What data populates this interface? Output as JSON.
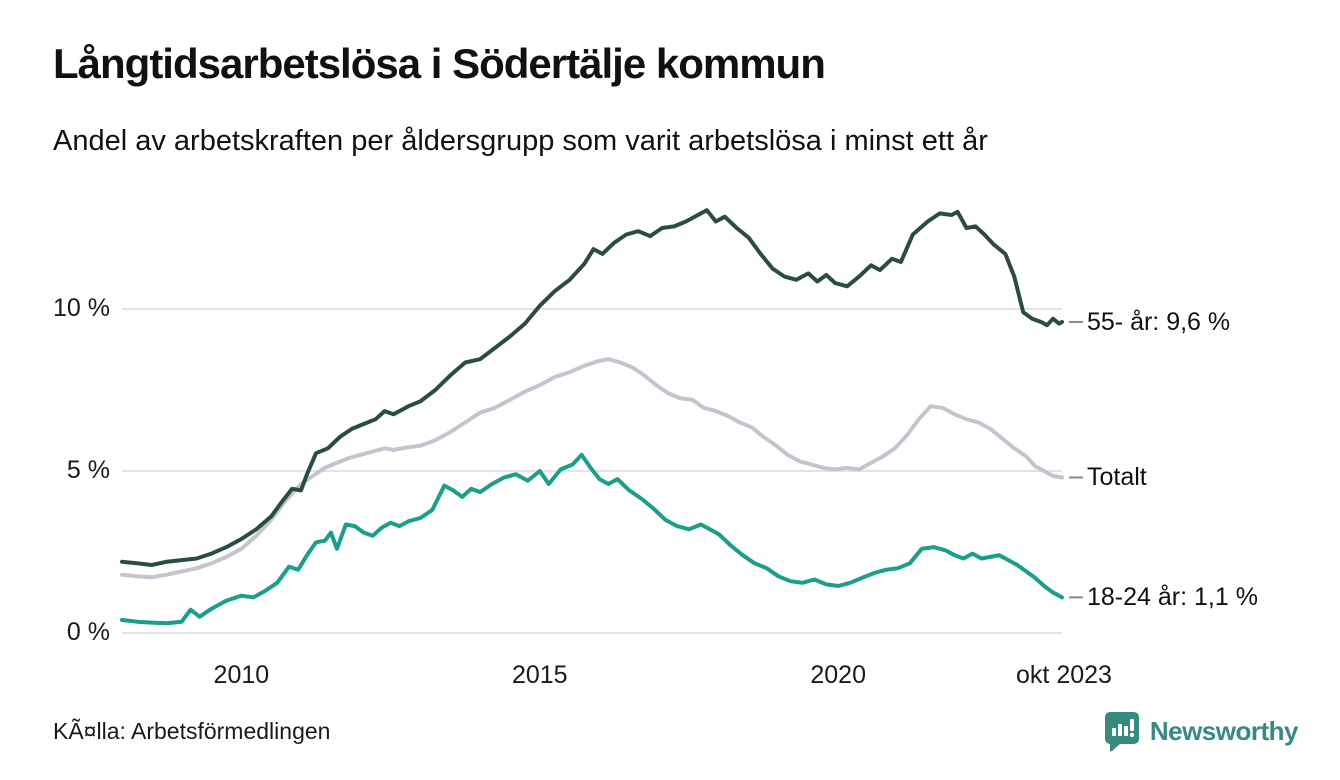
{
  "header": {
    "title": "Långtidsarbetslösa i Södertälje kommun",
    "subtitle": "Andel av arbetskraften per åldersgrupp som varit arbetslösa i minst ett år"
  },
  "chart_data": {
    "type": "line",
    "title": "Långtidsarbetslösa i Södertälje kommun",
    "subtitle": "Andel av arbetskraften per åldersgrupp som varit arbetslösa i minst ett år",
    "unit": "% av arbetskraften",
    "grid": true,
    "x_range": [
      2008.0,
      2023.79
    ],
    "y_range": [
      0,
      13.5
    ],
    "x_axis": {
      "ticks": [
        {
          "t": 2010,
          "label": "2010"
        },
        {
          "t": 2015,
          "label": "2015"
        },
        {
          "t": 2020,
          "label": "2020"
        },
        {
          "t": 2023.79,
          "label": "okt 2023"
        }
      ]
    },
    "y_axis": {
      "ticks": [
        {
          "v": 0,
          "label": "0 %"
        },
        {
          "v": 5,
          "label": "5 %"
        },
        {
          "v": 10,
          "label": "10 %"
        }
      ]
    },
    "gridline_color": "#e4e2e7",
    "series": [
      {
        "name": "Totalt",
        "color": "#c6c3cf",
        "end_label": "Totalt",
        "end_value": "4,8 %",
        "points": [
          [
            2008.0,
            1.8
          ],
          [
            2008.25,
            1.75
          ],
          [
            2008.5,
            1.72
          ],
          [
            2008.75,
            1.8
          ],
          [
            2009.0,
            1.9
          ],
          [
            2009.25,
            2.0
          ],
          [
            2009.5,
            2.15
          ],
          [
            2009.75,
            2.35
          ],
          [
            2010.0,
            2.6
          ],
          [
            2010.25,
            3.0
          ],
          [
            2010.5,
            3.5
          ],
          [
            2010.75,
            4.1
          ],
          [
            2011.0,
            4.6
          ],
          [
            2011.2,
            4.85
          ],
          [
            2011.4,
            5.1
          ],
          [
            2011.6,
            5.25
          ],
          [
            2011.8,
            5.4
          ],
          [
            2012.0,
            5.5
          ],
          [
            2012.2,
            5.6
          ],
          [
            2012.4,
            5.7
          ],
          [
            2012.55,
            5.65
          ],
          [
            2012.75,
            5.72
          ],
          [
            2013.0,
            5.78
          ],
          [
            2013.25,
            5.95
          ],
          [
            2013.5,
            6.2
          ],
          [
            2013.75,
            6.5
          ],
          [
            2014.0,
            6.8
          ],
          [
            2014.25,
            6.95
          ],
          [
            2014.5,
            7.2
          ],
          [
            2014.75,
            7.45
          ],
          [
            2015.0,
            7.65
          ],
          [
            2015.25,
            7.9
          ],
          [
            2015.5,
            8.05
          ],
          [
            2015.75,
            8.25
          ],
          [
            2016.0,
            8.4
          ],
          [
            2016.15,
            8.45
          ],
          [
            2016.35,
            8.35
          ],
          [
            2016.55,
            8.2
          ],
          [
            2016.75,
            7.95
          ],
          [
            2016.95,
            7.65
          ],
          [
            2017.15,
            7.4
          ],
          [
            2017.35,
            7.25
          ],
          [
            2017.55,
            7.2
          ],
          [
            2017.75,
            6.95
          ],
          [
            2017.95,
            6.85
          ],
          [
            2018.15,
            6.7
          ],
          [
            2018.35,
            6.5
          ],
          [
            2018.55,
            6.35
          ],
          [
            2018.75,
            6.05
          ],
          [
            2018.95,
            5.8
          ],
          [
            2019.15,
            5.5
          ],
          [
            2019.35,
            5.3
          ],
          [
            2019.55,
            5.2
          ],
          [
            2019.75,
            5.1
          ],
          [
            2019.95,
            5.05
          ],
          [
            2020.15,
            5.1
          ],
          [
            2020.35,
            5.05
          ],
          [
            2020.55,
            5.25
          ],
          [
            2020.75,
            5.45
          ],
          [
            2020.95,
            5.7
          ],
          [
            2021.15,
            6.1
          ],
          [
            2021.35,
            6.6
          ],
          [
            2021.55,
            7.0
          ],
          [
            2021.75,
            6.95
          ],
          [
            2021.95,
            6.75
          ],
          [
            2022.15,
            6.6
          ],
          [
            2022.35,
            6.5
          ],
          [
            2022.55,
            6.3
          ],
          [
            2022.75,
            6.0
          ],
          [
            2022.95,
            5.7
          ],
          [
            2023.15,
            5.45
          ],
          [
            2023.3,
            5.15
          ],
          [
            2023.45,
            5.0
          ],
          [
            2023.6,
            4.85
          ],
          [
            2023.75,
            4.8
          ]
        ]
      },
      {
        "name": "18-24 år",
        "color": "#1b9e8a",
        "end_label": "18-24 år: 1,1 %",
        "end_value": "1,1 %",
        "points": [
          [
            2008.0,
            0.4
          ],
          [
            2008.25,
            0.35
          ],
          [
            2008.5,
            0.32
          ],
          [
            2008.75,
            0.3
          ],
          [
            2009.0,
            0.35
          ],
          [
            2009.15,
            0.72
          ],
          [
            2009.3,
            0.5
          ],
          [
            2009.5,
            0.75
          ],
          [
            2009.75,
            1.0
          ],
          [
            2010.0,
            1.15
          ],
          [
            2010.2,
            1.1
          ],
          [
            2010.4,
            1.3
          ],
          [
            2010.6,
            1.55
          ],
          [
            2010.8,
            2.05
          ],
          [
            2010.95,
            1.95
          ],
          [
            2011.1,
            2.4
          ],
          [
            2011.25,
            2.8
          ],
          [
            2011.4,
            2.85
          ],
          [
            2011.5,
            3.1
          ],
          [
            2011.6,
            2.6
          ],
          [
            2011.75,
            3.35
          ],
          [
            2011.9,
            3.3
          ],
          [
            2012.05,
            3.1
          ],
          [
            2012.2,
            3.0
          ],
          [
            2012.35,
            3.25
          ],
          [
            2012.5,
            3.4
          ],
          [
            2012.65,
            3.3
          ],
          [
            2012.8,
            3.45
          ],
          [
            2013.0,
            3.55
          ],
          [
            2013.2,
            3.8
          ],
          [
            2013.4,
            4.55
          ],
          [
            2013.55,
            4.4
          ],
          [
            2013.7,
            4.2
          ],
          [
            2013.85,
            4.45
          ],
          [
            2014.0,
            4.35
          ],
          [
            2014.2,
            4.6
          ],
          [
            2014.4,
            4.8
          ],
          [
            2014.6,
            4.9
          ],
          [
            2014.8,
            4.7
          ],
          [
            2015.0,
            5.0
          ],
          [
            2015.15,
            4.6
          ],
          [
            2015.35,
            5.05
          ],
          [
            2015.55,
            5.2
          ],
          [
            2015.7,
            5.5
          ],
          [
            2015.85,
            5.1
          ],
          [
            2016.0,
            4.75
          ],
          [
            2016.15,
            4.6
          ],
          [
            2016.3,
            4.75
          ],
          [
            2016.5,
            4.4
          ],
          [
            2016.7,
            4.15
          ],
          [
            2016.9,
            3.85
          ],
          [
            2017.1,
            3.5
          ],
          [
            2017.3,
            3.3
          ],
          [
            2017.5,
            3.2
          ],
          [
            2017.7,
            3.35
          ],
          [
            2017.85,
            3.2
          ],
          [
            2018.0,
            3.05
          ],
          [
            2018.2,
            2.7
          ],
          [
            2018.4,
            2.4
          ],
          [
            2018.6,
            2.15
          ],
          [
            2018.8,
            2.0
          ],
          [
            2019.0,
            1.75
          ],
          [
            2019.2,
            1.6
          ],
          [
            2019.4,
            1.55
          ],
          [
            2019.6,
            1.65
          ],
          [
            2019.8,
            1.5
          ],
          [
            2020.0,
            1.45
          ],
          [
            2020.2,
            1.55
          ],
          [
            2020.4,
            1.7
          ],
          [
            2020.6,
            1.85
          ],
          [
            2020.8,
            1.95
          ],
          [
            2021.0,
            2.0
          ],
          [
            2021.2,
            2.15
          ],
          [
            2021.4,
            2.6
          ],
          [
            2021.6,
            2.65
          ],
          [
            2021.8,
            2.55
          ],
          [
            2021.95,
            2.4
          ],
          [
            2022.1,
            2.3
          ],
          [
            2022.25,
            2.45
          ],
          [
            2022.4,
            2.3
          ],
          [
            2022.55,
            2.35
          ],
          [
            2022.7,
            2.4
          ],
          [
            2022.85,
            2.25
          ],
          [
            2023.0,
            2.1
          ],
          [
            2023.15,
            1.9
          ],
          [
            2023.3,
            1.7
          ],
          [
            2023.45,
            1.45
          ],
          [
            2023.6,
            1.25
          ],
          [
            2023.7,
            1.15
          ],
          [
            2023.75,
            1.1
          ]
        ]
      },
      {
        "name": "55- år",
        "color": "#2b4c43",
        "end_label": "55- år: 9,6 %",
        "end_value": "9,6 %",
        "points": [
          [
            2008.0,
            2.2
          ],
          [
            2008.25,
            2.15
          ],
          [
            2008.5,
            2.1
          ],
          [
            2008.75,
            2.2
          ],
          [
            2009.0,
            2.25
          ],
          [
            2009.25,
            2.3
          ],
          [
            2009.5,
            2.45
          ],
          [
            2009.75,
            2.65
          ],
          [
            2010.0,
            2.9
          ],
          [
            2010.25,
            3.2
          ],
          [
            2010.5,
            3.6
          ],
          [
            2010.7,
            4.1
          ],
          [
            2010.85,
            4.45
          ],
          [
            2011.0,
            4.4
          ],
          [
            2011.1,
            4.9
          ],
          [
            2011.25,
            5.55
          ],
          [
            2011.45,
            5.7
          ],
          [
            2011.65,
            6.05
          ],
          [
            2011.85,
            6.3
          ],
          [
            2012.05,
            6.45
          ],
          [
            2012.25,
            6.6
          ],
          [
            2012.4,
            6.85
          ],
          [
            2012.55,
            6.75
          ],
          [
            2012.8,
            7.0
          ],
          [
            2013.0,
            7.15
          ],
          [
            2013.25,
            7.5
          ],
          [
            2013.5,
            7.95
          ],
          [
            2013.75,
            8.35
          ],
          [
            2014.0,
            8.45
          ],
          [
            2014.25,
            8.8
          ],
          [
            2014.5,
            9.15
          ],
          [
            2014.75,
            9.55
          ],
          [
            2015.0,
            10.1
          ],
          [
            2015.25,
            10.55
          ],
          [
            2015.5,
            10.9
          ],
          [
            2015.75,
            11.4
          ],
          [
            2015.9,
            11.85
          ],
          [
            2016.05,
            11.7
          ],
          [
            2016.25,
            12.05
          ],
          [
            2016.45,
            12.3
          ],
          [
            2016.65,
            12.4
          ],
          [
            2016.85,
            12.25
          ],
          [
            2017.05,
            12.5
          ],
          [
            2017.25,
            12.55
          ],
          [
            2017.45,
            12.7
          ],
          [
            2017.65,
            12.9
          ],
          [
            2017.8,
            13.05
          ],
          [
            2017.95,
            12.7
          ],
          [
            2018.1,
            12.85
          ],
          [
            2018.3,
            12.5
          ],
          [
            2018.5,
            12.2
          ],
          [
            2018.7,
            11.7
          ],
          [
            2018.9,
            11.25
          ],
          [
            2019.1,
            11.0
          ],
          [
            2019.3,
            10.9
          ],
          [
            2019.5,
            11.1
          ],
          [
            2019.65,
            10.85
          ],
          [
            2019.8,
            11.05
          ],
          [
            2019.95,
            10.8
          ],
          [
            2020.15,
            10.7
          ],
          [
            2020.35,
            11.0
          ],
          [
            2020.55,
            11.35
          ],
          [
            2020.7,
            11.2
          ],
          [
            2020.9,
            11.55
          ],
          [
            2021.05,
            11.45
          ],
          [
            2021.25,
            12.3
          ],
          [
            2021.5,
            12.7
          ],
          [
            2021.7,
            12.95
          ],
          [
            2021.9,
            12.9
          ],
          [
            2022.0,
            13.0
          ],
          [
            2022.15,
            12.5
          ],
          [
            2022.3,
            12.55
          ],
          [
            2022.45,
            12.3
          ],
          [
            2022.6,
            12.0
          ],
          [
            2022.8,
            11.7
          ],
          [
            2022.95,
            11.0
          ],
          [
            2023.1,
            9.9
          ],
          [
            2023.25,
            9.7
          ],
          [
            2023.4,
            9.6
          ],
          [
            2023.5,
            9.5
          ],
          [
            2023.6,
            9.7
          ],
          [
            2023.7,
            9.55
          ],
          [
            2023.75,
            9.6
          ]
        ]
      }
    ],
    "legend_position": "end-of-line-labels"
  },
  "footer": {
    "source": "KÃ¤lla: Arbetsförmedlingen",
    "brand": "Newsworthy",
    "brand_color": "#358b80",
    "brand_icon": "newsworthy-speech-bubble-bar-chart"
  }
}
